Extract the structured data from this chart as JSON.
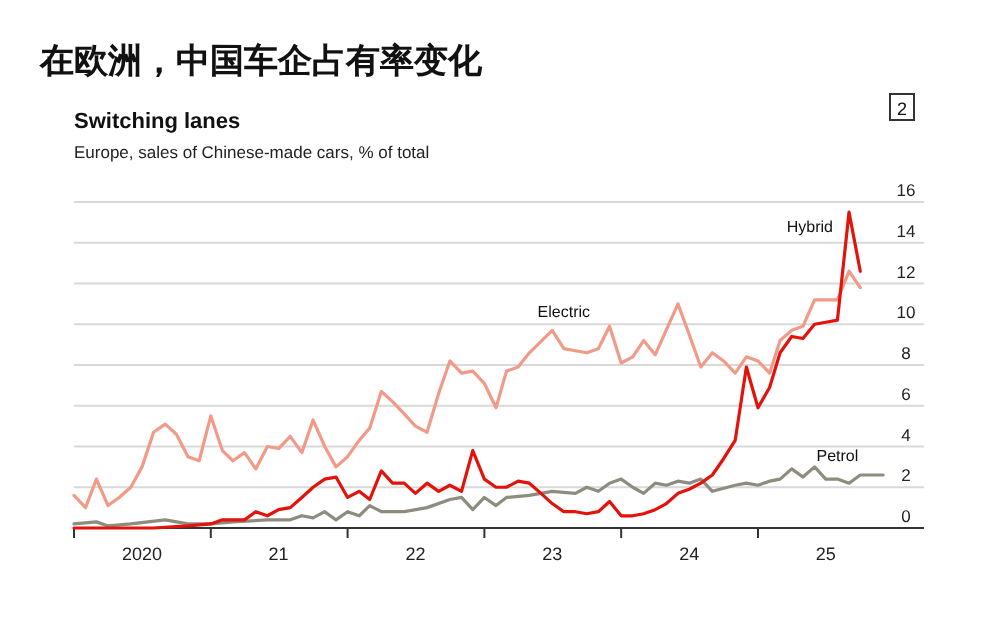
{
  "chart_data": {
    "type": "line",
    "title": "在欧洲，中国车企占有率变化",
    "subtitle": "Switching lanes",
    "ylabel": "Europe, sales of Chinese-made cars, % of total",
    "annotations": [
      "2"
    ],
    "xlim": [
      "2020-01-01",
      "2026-03-20"
    ],
    "xticks": [
      {
        "value": "2020-01-01",
        "label": null
      },
      {
        "value": "2021-01-01",
        "label": null
      },
      {
        "value": "2022-01-01",
        "label": null
      },
      {
        "value": "2023-01-01",
        "label": null
      },
      {
        "value": "2024-01-01",
        "label": null
      },
      {
        "value": "2025-01-01",
        "label": null
      },
      {
        "value": "2020-07-01",
        "label": "2020"
      },
      {
        "value": "2021-07-01",
        "label": "21"
      },
      {
        "value": "2022-07-01",
        "label": "22"
      },
      {
        "value": "2023-07-01",
        "label": "23"
      },
      {
        "value": "2024-07-01",
        "label": "24"
      },
      {
        "value": "2025-07-01",
        "label": "25"
      }
    ],
    "ylim": [
      0,
      16
    ],
    "yticks": [
      0,
      2,
      4,
      6,
      8,
      10,
      12,
      14,
      16
    ],
    "grid": "y",
    "series": [
      {
        "name": "Electric",
        "color": "#f29a88",
        "x": [
          "2020-01",
          "2020-02",
          "2020-03",
          "2020-04",
          "2020-05",
          "2020-06",
          "2020-07",
          "2020-08",
          "2020-09",
          "2020-10",
          "2020-11",
          "2020-12",
          "2021-01",
          "2021-02",
          "2021-03",
          "2021-04",
          "2021-05",
          "2021-06",
          "2021-07",
          "2021-08",
          "2021-09",
          "2021-10",
          "2021-11",
          "2021-12",
          "2022-01",
          "2022-02",
          "2022-03",
          "2022-04",
          "2022-05",
          "2022-06",
          "2022-07",
          "2022-08",
          "2022-09",
          "2022-10",
          "2022-11",
          "2022-12",
          "2023-01",
          "2023-02",
          "2023-03",
          "2023-04",
          "2023-05",
          "2023-07",
          "2023-08",
          "2023-09",
          "2023-10",
          "2023-11",
          "2023-12",
          "2024-01",
          "2024-02",
          "2024-03",
          "2024-04",
          "2024-06",
          "2024-07",
          "2024-08",
          "2024-09",
          "2024-10",
          "2024-11",
          "2024-12",
          "2025-01",
          "2025-02",
          "2025-03",
          "2025-04",
          "2025-05",
          "2025-06",
          "2025-07",
          "2025-08",
          "2025-09",
          "2025-10"
        ],
        "values": [
          1.6,
          1.0,
          2.4,
          1.1,
          1.5,
          2.0,
          3.0,
          4.7,
          5.1,
          4.6,
          3.5,
          3.3,
          5.5,
          3.8,
          3.3,
          3.7,
          2.9,
          4.0,
          3.9,
          4.5,
          3.7,
          5.3,
          4.0,
          3.0,
          3.5,
          4.3,
          4.9,
          6.7,
          6.2,
          5.6,
          5.0,
          4.7,
          6.6,
          8.2,
          7.6,
          7.7,
          7.1,
          5.9,
          7.7,
          7.9,
          8.6,
          9.7,
          8.8,
          8.7,
          8.6,
          8.8,
          9.9,
          8.1,
          8.4,
          9.2,
          8.5,
          11.0,
          9.5,
          7.9,
          8.6,
          8.2,
          7.6,
          8.4,
          8.2,
          7.6,
          9.2,
          9.7,
          9.9,
          11.2,
          11.2,
          11.2,
          12.6,
          11.8
        ]
      },
      {
        "name": "Petrol",
        "color": "#8e8c7f",
        "x": [
          "2020-01",
          "2020-03",
          "2020-04",
          "2020-06",
          "2020-09",
          "2020-11",
          "2021-01",
          "2021-03",
          "2021-06",
          "2021-08",
          "2021-09",
          "2021-10",
          "2021-11",
          "2021-12",
          "2022-01",
          "2022-02",
          "2022-03",
          "2022-04",
          "2022-06",
          "2022-08",
          "2022-10",
          "2022-11",
          "2022-12",
          "2023-01",
          "2023-02",
          "2023-03",
          "2023-05",
          "2023-07",
          "2023-09",
          "2023-10",
          "2023-11",
          "2023-12",
          "2024-01",
          "2024-02",
          "2024-03",
          "2024-04",
          "2024-05",
          "2024-06",
          "2024-07",
          "2024-08",
          "2024-09",
          "2024-11",
          "2024-12",
          "2025-01",
          "2025-02",
          "2025-03",
          "2025-04",
          "2025-05",
          "2025-06",
          "2025-07",
          "2025-08",
          "2025-09",
          "2025-10",
          "2025-11",
          "2025-12"
        ],
        "values": [
          0.2,
          0.3,
          0.1,
          0.2,
          0.4,
          0.2,
          0.2,
          0.3,
          0.4,
          0.4,
          0.6,
          0.5,
          0.8,
          0.4,
          0.8,
          0.6,
          1.1,
          0.8,
          0.8,
          1.0,
          1.4,
          1.5,
          0.9,
          1.5,
          1.1,
          1.5,
          1.6,
          1.8,
          1.7,
          2.0,
          1.8,
          2.2,
          2.4,
          2.0,
          1.7,
          2.2,
          2.1,
          2.3,
          2.2,
          2.4,
          1.8,
          2.1,
          2.2,
          2.1,
          2.3,
          2.4,
          2.9,
          2.5,
          3.0,
          2.4,
          2.4,
          2.2,
          2.6,
          2.6,
          2.6
        ]
      },
      {
        "name": "Hybrid",
        "color": "#e3120b",
        "x": [
          "2020-01",
          "2020-05",
          "2020-08",
          "2020-11",
          "2021-01",
          "2021-02",
          "2021-04",
          "2021-05",
          "2021-06",
          "2021-07",
          "2021-08",
          "2021-09",
          "2021-10",
          "2021-11",
          "2021-12",
          "2022-01",
          "2022-02",
          "2022-03",
          "2022-04",
          "2022-05",
          "2022-06",
          "2022-07",
          "2022-08",
          "2022-09",
          "2022-10",
          "2022-11",
          "2022-12",
          "2023-01",
          "2023-02",
          "2023-03",
          "2023-04",
          "2023-05",
          "2023-06",
          "2023-07",
          "2023-08",
          "2023-09",
          "2023-10",
          "2023-11",
          "2023-12",
          "2024-01",
          "2024-02",
          "2024-03",
          "2024-04",
          "2024-05",
          "2024-06",
          "2024-07",
          "2024-08",
          "2024-09",
          "2024-10",
          "2024-11",
          "2024-12",
          "2025-01",
          "2025-02",
          "2025-03",
          "2025-04",
          "2025-05",
          "2025-06",
          "2025-07",
          "2025-08",
          "2025-09",
          "2025-10"
        ],
        "values": [
          0,
          0,
          0,
          0.1,
          0.2,
          0.4,
          0.4,
          0.8,
          0.6,
          0.9,
          1.0,
          1.5,
          2.0,
          2.4,
          2.5,
          1.5,
          1.8,
          1.4,
          2.8,
          2.2,
          2.2,
          1.7,
          2.2,
          1.8,
          2.1,
          1.8,
          3.8,
          2.4,
          2.0,
          2.0,
          2.3,
          2.2,
          1.7,
          1.2,
          0.8,
          0.8,
          0.7,
          0.8,
          1.3,
          0.6,
          0.6,
          0.7,
          0.9,
          1.2,
          1.7,
          1.9,
          2.2,
          2.6,
          3.4,
          4.3,
          7.9,
          5.9,
          6.9,
          8.6,
          9.4,
          9.3,
          10.0,
          10.1,
          10.2,
          15.5,
          12.6
        ]
      }
    ]
  }
}
